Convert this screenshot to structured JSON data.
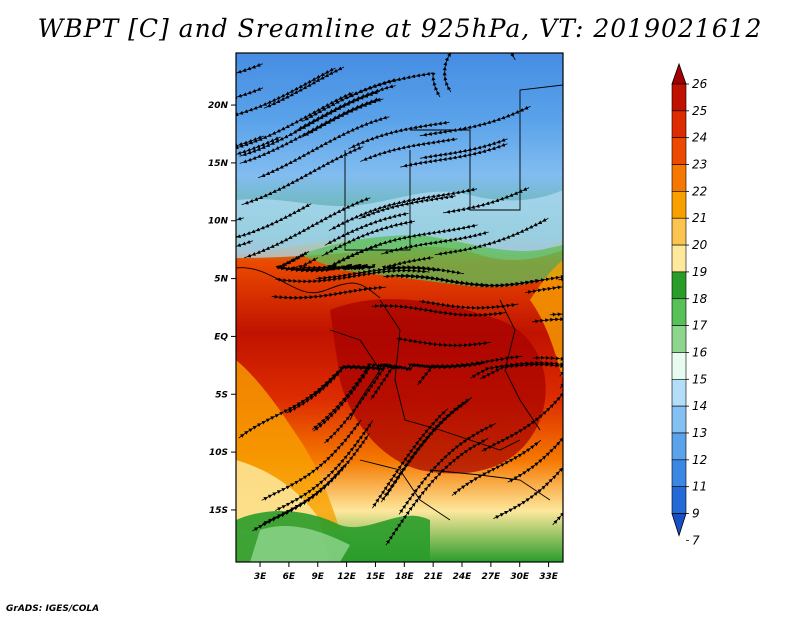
{
  "title": "WBPT [C] and Sreamline at 925hPa, VT: 2019021612",
  "footer": "GrADS: IGES/COLA",
  "map": {
    "lon_ticks": [
      "3E",
      "6E",
      "9E",
      "12E",
      "15E",
      "18E",
      "21E",
      "24E",
      "27E",
      "30E",
      "33E"
    ],
    "lat_ticks": [
      "20N",
      "15N",
      "10N",
      "5N",
      "EQ",
      "5S",
      "10S",
      "15S"
    ],
    "extent": {
      "lon": [
        0.5,
        34.5
      ],
      "lat": [
        -19.5,
        24.5
      ]
    }
  },
  "colorbar": {
    "labels": [
      "26",
      "25",
      "24",
      "23",
      "22",
      "21",
      "20",
      "19",
      "18",
      "17",
      "16",
      "15",
      "14",
      "13",
      "12",
      "11",
      "9",
      "7"
    ],
    "colors": [
      "#a50000",
      "#c01200",
      "#dd2c00",
      "#ec4a00",
      "#f57800",
      "#f8a000",
      "#fbc450",
      "#fde89c",
      "#2a9c2a",
      "#58c058",
      "#8ed68e",
      "#e8fbf0",
      "#b4ddf8",
      "#84c0f2",
      "#5aa2ea",
      "#3c86e4",
      "#236ad6",
      "#1750c6"
    ]
  },
  "colors": {
    "frame": "#000000",
    "streamline": "#000000"
  }
}
